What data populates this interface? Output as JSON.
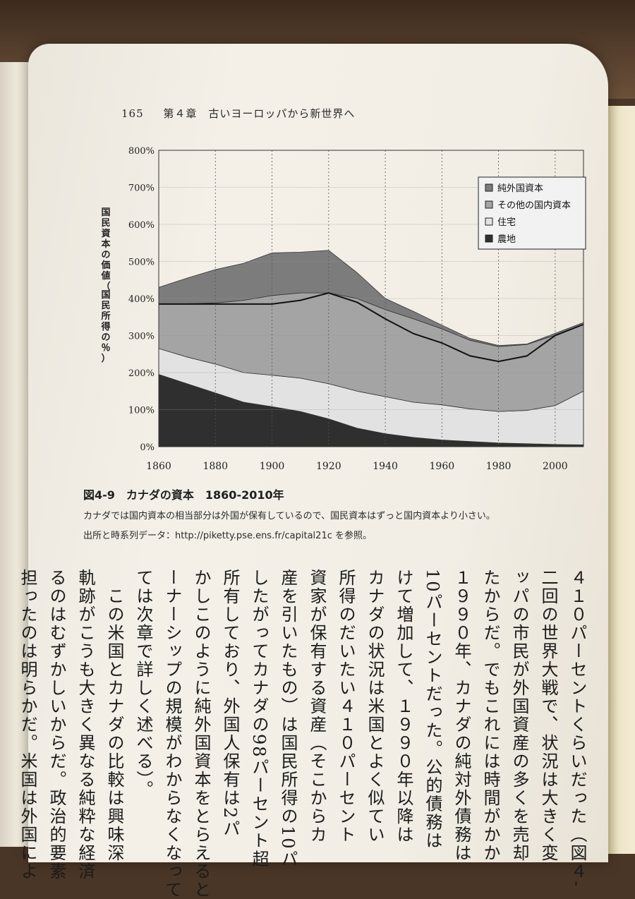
{
  "header": {
    "page_number": "165",
    "chapter": "第４章　古いヨーロッパから新世界へ"
  },
  "figure": {
    "title": "図4-9　カナダの資本　1860-2010年",
    "note": "カナダでは国内資本の相当部分は外国が保有しているので、国民資本はずっと国内資本より小さい。",
    "source": "出所と時系列データ：http://piketty.pse.ens.fr/capital21c を参照。"
  },
  "chart_data": {
    "type": "area",
    "ylabel": "国民資本の価値（国民所得の％）",
    "ylim": [
      0,
      800
    ],
    "xlim": [
      1860,
      2010
    ],
    "x_ticks": [
      "1860",
      "1880",
      "1900",
      "1920",
      "1940",
      "1960",
      "1980",
      "2000"
    ],
    "y_ticks": [
      "0%",
      "100%",
      "200%",
      "300%",
      "400%",
      "500%",
      "600%",
      "700%",
      "800%"
    ],
    "grid": "vertical dotted",
    "legend_position": "top-right",
    "x": [
      1860,
      1870,
      1880,
      1890,
      1900,
      1910,
      1920,
      1930,
      1940,
      1950,
      1960,
      1970,
      1980,
      1990,
      2000,
      2010
    ],
    "series": [
      {
        "name": "農地",
        "color": "#2f2f2f",
        "values": [
          195,
          170,
          145,
          120,
          108,
          95,
          75,
          50,
          35,
          25,
          18,
          14,
          10,
          8,
          6,
          5
        ]
      },
      {
        "name": "住宅",
        "color": "#e2e2e2",
        "values": [
          70,
          72,
          78,
          80,
          85,
          90,
          95,
          100,
          100,
          95,
          95,
          88,
          85,
          90,
          105,
          145
        ]
      },
      {
        "name": "その他の国内資本",
        "color": "#a4a4a4",
        "values": [
          120,
          144,
          165,
          195,
          215,
          230,
          245,
          250,
          235,
          225,
          205,
          185,
          175,
          178,
          190,
          180
        ]
      },
      {
        "name": "純外国資本",
        "color": "#7c7c7c",
        "values": [
          45,
          69,
          90,
          100,
          115,
          110,
          115,
          70,
          30,
          20,
          10,
          5,
          3,
          1,
          5,
          5
        ]
      }
    ],
    "national_capital_line": [
      385,
      385,
      385,
      385,
      385,
      395,
      415,
      390,
      345,
      305,
      280,
      245,
      230,
      245,
      300,
      330
    ]
  },
  "body_columns": [
    "４１０パーセントくらいだった（図４‐",
    "二回の世界大戦で、状況は大きく変",
    "ッパの市民が外国資産の多くを売却",
    "たからだ。でもこれには時間がかか",
    "１９９０年、カナダの純対外債務は",
    "10パーセントだった。公的債務は",
    "けて増加して、１９９０年以降は",
    "カナダの状況は米国とよく似てい",
    "所得のだいたい４１０パーセント",
    "資家が保有する資産（そこからカ",
    "産を引いたもの）は国民所得の10パ",
    "したがってカナダの98パーセント超",
    "所有しており、外国人保有は2パ",
    "かしこのように純外国資本をとらえると",
    "ーナーシップの規模がわからなくなって",
    "ては次章で詳しく述べる）。",
    "",
    "　この米国とカナダの比較は興味深",
    "軌跡がこうも大きく異なる純粋な経済",
    "るのはむずかしいからだ。政治的要素",
    "担ったのは明らかだ。米国は外国によ"
  ]
}
